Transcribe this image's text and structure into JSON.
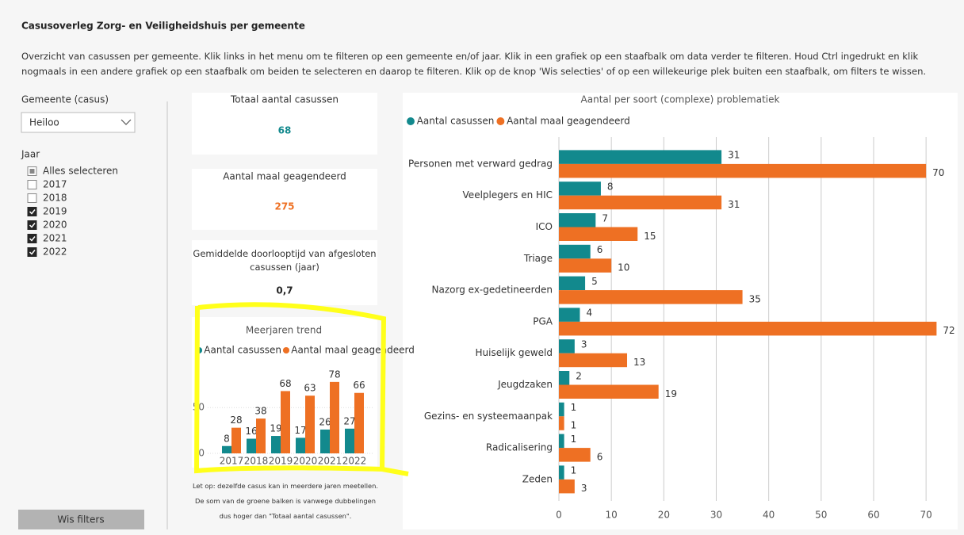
{
  "header": {
    "title": "Casusoverleg Zorg- en Veiligheidshuis per gemeente",
    "description": "Overzicht van casussen per gemeente. Klik links in het menu om te filteren op een gemeente en/of jaar. Klik in een grafiek op een staafbalk om data verder te filteren. Houd Ctrl ingedrukt en klik nogmaals in een andere grafiek op een staafbalk om beiden te selecteren en daarop te filteren. Klik op de knop 'Wis selecties' of op een willekeurige plek buiten een staafbalk, om filters te wissen."
  },
  "filters": {
    "municipality_label": "Gemeente (casus)",
    "municipality_value": "Heiloo",
    "year_label": "Jaar",
    "year_options": [
      {
        "label": "Alles selecteren",
        "state": "partial"
      },
      {
        "label": "2017",
        "state": "unchecked"
      },
      {
        "label": "2018",
        "state": "unchecked"
      },
      {
        "label": "2019",
        "state": "checked"
      },
      {
        "label": "2020",
        "state": "checked"
      },
      {
        "label": "2021",
        "state": "checked"
      },
      {
        "label": "2022",
        "state": "checked"
      }
    ],
    "clear_button": "Wis filters"
  },
  "cards": [
    {
      "title": "Totaal aantal casussen",
      "value": 68,
      "color": "#12898d"
    },
    {
      "title": "Aantal maal geagendeerd",
      "value": 275,
      "color": "#ee7023"
    },
    {
      "title": "Gemiddelde doorlooptijd van afgesloten casussen (jaar)",
      "value": "0,7",
      "color": "#252525"
    }
  ],
  "note": "Let op: dezelfde casus kan in meerdere jaren meetellen. De som van de groene balken is vanwege dubbelingen dus hoger dan \"Totaal aantal casussen\".",
  "chart_data": [
    {
      "type": "bar",
      "orientation": "vertical",
      "title": "Meerjaren trend",
      "categories": [
        "2017",
        "2018",
        "2019",
        "2020",
        "2021",
        "2022"
      ],
      "series": [
        {
          "name": "Aantal casussen",
          "color": "#12898d",
          "values": [
            8,
            16,
            19,
            17,
            26,
            27
          ]
        },
        {
          "name": "Aantal maal geagendeerd",
          "color": "#ee7023",
          "values": [
            28,
            38,
            68,
            63,
            78,
            66
          ]
        }
      ],
      "ylim": [
        0,
        90
      ],
      "yticks": [
        0,
        50
      ],
      "grid": true,
      "legend": "top-left"
    },
    {
      "type": "bar",
      "orientation": "horizontal",
      "title": "Aantal per soort (complexe) problematiek",
      "categories": [
        "Personen met verward gedrag",
        "Veelplegers en HIC",
        "ICO",
        "Triage",
        "Nazorg ex-gedetineerden",
        "PGA",
        "Huiselijk geweld",
        "Jeugdzaken",
        "Gezins- en systeemaanpak",
        "Radicalisering",
        "Zeden"
      ],
      "series": [
        {
          "name": "Aantal casussen",
          "color": "#12898d",
          "values": [
            31,
            8,
            7,
            6,
            5,
            4,
            3,
            2,
            1,
            1,
            1
          ]
        },
        {
          "name": "Aantal maal geagendeerd",
          "color": "#ee7023",
          "values": [
            70,
            31,
            15,
            10,
            35,
            72,
            13,
            19,
            1,
            6,
            3
          ]
        }
      ],
      "xlim": [
        0,
        73
      ],
      "xticks": [
        0,
        10,
        20,
        30,
        40,
        50,
        60,
        70
      ],
      "grid": true,
      "legend": "top-left"
    }
  ]
}
